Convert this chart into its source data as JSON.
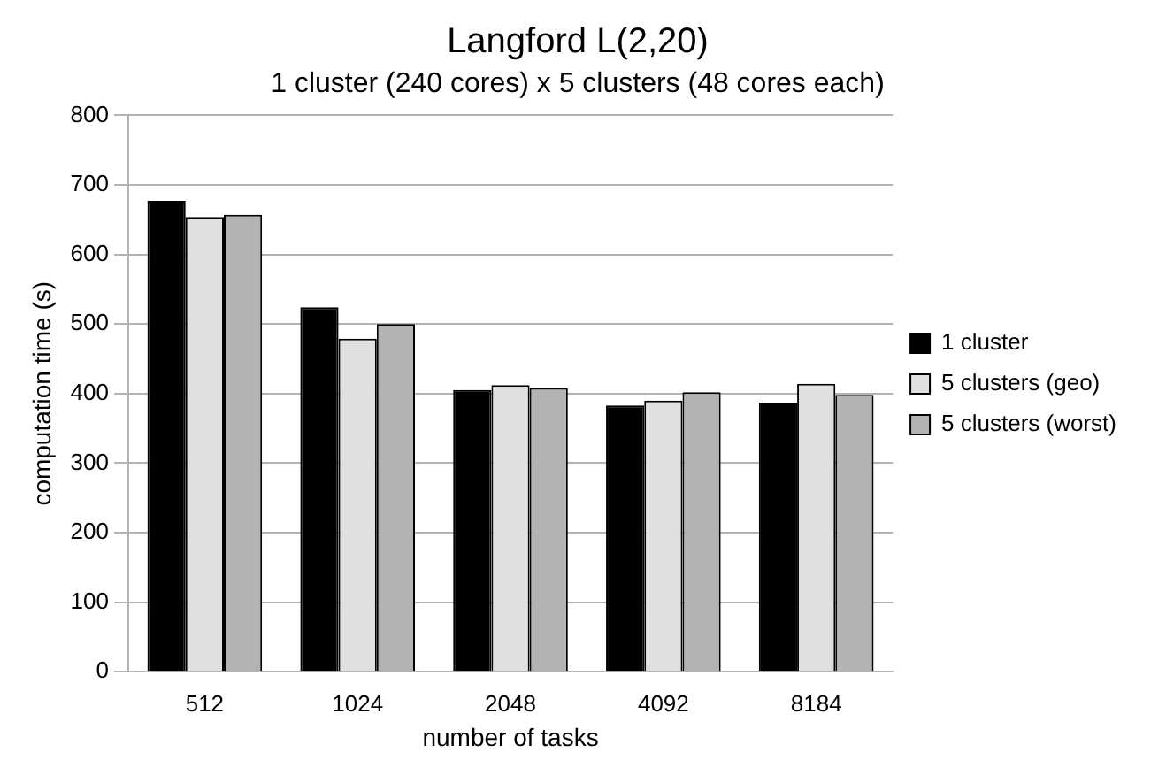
{
  "chart_data": {
    "type": "bar",
    "title": "Langford L(2,20)",
    "subtitle": "1 cluster (240 cores) x 5 clusters (48 cores each)",
    "xlabel": "number of tasks",
    "ylabel": "computation time (s)",
    "categories": [
      "512",
      "1024",
      "2048",
      "4092",
      "8184"
    ],
    "series": [
      {
        "name": "1 cluster",
        "color": "#000000",
        "values": [
          677,
          524,
          405,
          383,
          387
        ]
      },
      {
        "name": "5 clusters (geo)",
        "color": "#e0e0e0",
        "values": [
          654,
          479,
          412,
          390,
          414
        ]
      },
      {
        "name": "5 clusters (worst)",
        "color": "#b3b3b3",
        "values": [
          657,
          500,
          408,
          402,
          398
        ]
      }
    ],
    "ylim": [
      0,
      800
    ],
    "yticks": [
      0,
      100,
      200,
      300,
      400,
      500,
      600,
      700,
      800
    ],
    "grid": "y",
    "legend": "right"
  }
}
